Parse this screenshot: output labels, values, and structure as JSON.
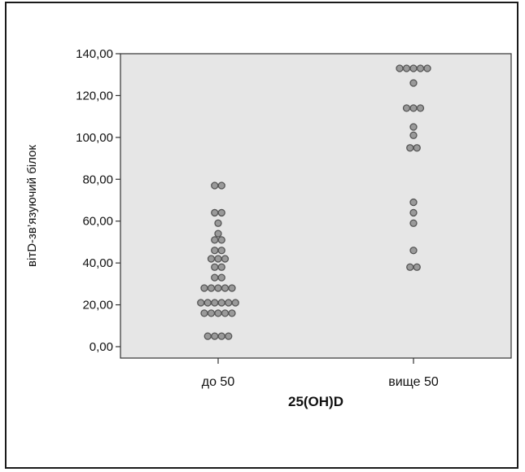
{
  "chart_data": {
    "type": "scatter",
    "subtype": "dot-plot",
    "title": "",
    "xlabel": "25(OH)D",
    "ylabel": "вітD-зв’язуючий білок",
    "categories": [
      "до 50",
      "вище 50"
    ],
    "ylim": [
      0,
      140
    ],
    "yticks": [
      0,
      20,
      40,
      60,
      80,
      100,
      120,
      140
    ],
    "ytick_labels": [
      "0,00",
      "20,00",
      "40,00",
      "60,00",
      "80,00",
      "100,00",
      "120,00",
      "140,00"
    ],
    "grid": false,
    "colors": {
      "plot_bg": "#e6e6e6",
      "marker_fill": "#9a9a9a",
      "marker_edge": "#555555",
      "axis": "#333333"
    },
    "series": [
      {
        "category": "до 50",
        "values": [
          77,
          77,
          64,
          64,
          59,
          54,
          51,
          51,
          46,
          46,
          42,
          42,
          42,
          38,
          38,
          33,
          33,
          28,
          28,
          28,
          28,
          28,
          21,
          21,
          21,
          21,
          21,
          21,
          16,
          16,
          16,
          16,
          16,
          5,
          5,
          5,
          5
        ]
      },
      {
        "category": "вище 50",
        "values": [
          133,
          133,
          133,
          133,
          133,
          126,
          114,
          114,
          114,
          105,
          101,
          95,
          95,
          69,
          64,
          59,
          46,
          38,
          38
        ]
      }
    ]
  }
}
